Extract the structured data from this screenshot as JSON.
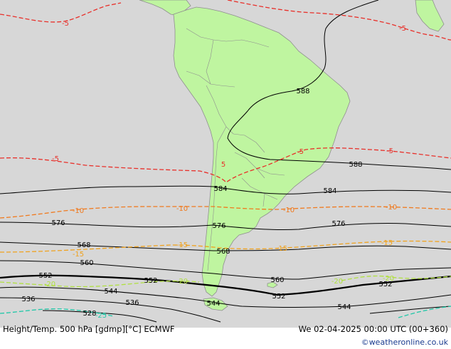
{
  "colors": {
    "ocean": "#d7d7d7",
    "land": "#bff5a0",
    "land_border": "#9a9a9a",
    "height_contour": "#000000",
    "temp_minus5": "#e8302a",
    "temp_minus10": "#f07a1e",
    "temp_minus15": "#f0a21e",
    "temp_minus20": "#b0e040",
    "temp_minus25": "#20c8a8"
  },
  "height_labels": {
    "h588a": "588",
    "h588b": "588",
    "h584a": "584",
    "h584b": "584",
    "h576a": "576",
    "h576b": "576",
    "h576c": "576",
    "h568a": "568",
    "h568b": "568",
    "h560a": "560",
    "h560b": "560",
    "h552a": "552",
    "h552b": "552",
    "h552c": "552",
    "h552d": "552",
    "h544a": "544",
    "h544b": "544",
    "h544c": "544",
    "h536a": "536",
    "h536b": "536",
    "h528a": "528"
  },
  "temp_labels": {
    "t5a": "-5",
    "t5b": "-5",
    "t5c": "-5",
    "t5d": "-5",
    "t5e": "-5",
    "t5f": "5",
    "t10a": "-10",
    "t10b": "-10",
    "t10c": "-10",
    "t10d": "-10",
    "t15a": "-15",
    "t15b": "-15",
    "t15c": "-15",
    "t15d": "-15",
    "t20a": "-20",
    "t20b": "-20",
    "t20c": "-20",
    "t20d": "-20",
    "t25a": "-25"
  },
  "footer": {
    "title": "Height/Temp. 500 hPa [gdmp][°C] ECMWF",
    "datetime": "We 02-04-2025 00:00 UTC (00+360)",
    "watermark": "©weatheronline.co.uk"
  }
}
